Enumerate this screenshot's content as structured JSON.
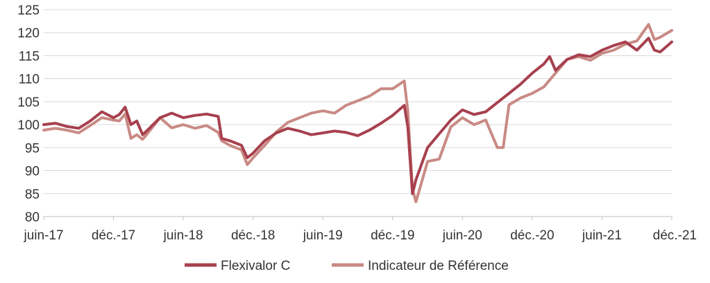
{
  "chart_data": {
    "type": "line",
    "title": "",
    "xlabel": "",
    "ylabel": "",
    "ylim": [
      80,
      125
    ],
    "yticks": [
      80,
      85,
      90,
      95,
      100,
      105,
      110,
      115,
      120,
      125
    ],
    "xticks": [
      "juin-17",
      "déc.-17",
      "juin-18",
      "déc.-18",
      "juin-19",
      "déc.-19",
      "juin-20",
      "déc.-20",
      "juin-21",
      "déc.-21"
    ],
    "xrange": [
      0,
      54
    ],
    "grid": true,
    "legend_position": "bottom",
    "series": [
      {
        "name": "Flexivalor C",
        "color": "#a7404e",
        "points": [
          [
            0,
            100
          ],
          [
            1,
            100.3
          ],
          [
            2,
            99.6
          ],
          [
            3,
            99.2
          ],
          [
            4,
            100.8
          ],
          [
            5,
            102.8
          ],
          [
            6,
            101.5
          ],
          [
            6.5,
            102.2
          ],
          [
            7,
            103.8
          ],
          [
            7.5,
            100
          ],
          [
            8,
            100.8
          ],
          [
            8.5,
            97.8
          ],
          [
            9,
            99
          ],
          [
            10,
            101.5
          ],
          [
            11,
            102.5
          ],
          [
            12,
            101.5
          ],
          [
            13,
            102
          ],
          [
            14,
            102.3
          ],
          [
            15,
            101.8
          ],
          [
            15.3,
            97
          ],
          [
            16,
            96.5
          ],
          [
            17,
            95.5
          ],
          [
            17.5,
            92.8
          ],
          [
            18,
            93.8
          ],
          [
            19,
            96.5
          ],
          [
            20,
            98.2
          ],
          [
            21,
            99.2
          ],
          [
            22,
            98.6
          ],
          [
            23,
            97.8
          ],
          [
            24,
            98.2
          ],
          [
            25,
            98.6
          ],
          [
            26,
            98.3
          ],
          [
            27,
            97.6
          ],
          [
            28,
            98.8
          ],
          [
            29,
            100.3
          ],
          [
            30,
            102
          ],
          [
            31,
            104.2
          ],
          [
            31.3,
            99.5
          ],
          [
            31.7,
            85
          ],
          [
            32,
            88
          ],
          [
            33,
            95
          ],
          [
            34,
            98
          ],
          [
            35,
            101
          ],
          [
            36,
            103.2
          ],
          [
            37,
            102.2
          ],
          [
            38,
            102.8
          ],
          [
            39,
            104.8
          ],
          [
            40,
            106.8
          ],
          [
            41,
            108.8
          ],
          [
            42,
            111.2
          ],
          [
            43,
            113.2
          ],
          [
            43.5,
            114.8
          ],
          [
            44,
            111.8
          ],
          [
            45,
            114.2
          ],
          [
            46,
            115.2
          ],
          [
            47,
            114.8
          ],
          [
            48,
            116.2
          ],
          [
            49,
            117.2
          ],
          [
            50,
            118
          ],
          [
            51,
            116.2
          ],
          [
            52,
            118.8
          ],
          [
            52.5,
            116.2
          ],
          [
            53,
            115.8
          ],
          [
            54,
            118
          ]
        ]
      },
      {
        "name": "Indicateur de Référence",
        "color": "#c98a84",
        "points": [
          [
            0,
            98.8
          ],
          [
            1,
            99.2
          ],
          [
            2,
            98.8
          ],
          [
            3,
            98.2
          ],
          [
            4,
            99.8
          ],
          [
            5,
            101.5
          ],
          [
            6,
            101
          ],
          [
            6.5,
            100.8
          ],
          [
            7,
            102.3
          ],
          [
            7.5,
            97
          ],
          [
            8,
            97.8
          ],
          [
            8.5,
            96.8
          ],
          [
            9,
            98.3
          ],
          [
            10,
            101.5
          ],
          [
            11,
            99.3
          ],
          [
            12,
            100
          ],
          [
            13,
            99.2
          ],
          [
            14,
            99.8
          ],
          [
            15,
            98.3
          ],
          [
            15.3,
            96.5
          ],
          [
            16,
            95.5
          ],
          [
            17,
            94.5
          ],
          [
            17.5,
            91.3
          ],
          [
            18,
            92.8
          ],
          [
            19,
            95.5
          ],
          [
            20,
            98.4
          ],
          [
            21,
            100.5
          ],
          [
            22,
            101.5
          ],
          [
            23,
            102.5
          ],
          [
            24,
            103
          ],
          [
            25,
            102.5
          ],
          [
            26,
            104.2
          ],
          [
            27,
            105.2
          ],
          [
            28,
            106.2
          ],
          [
            29,
            107.8
          ],
          [
            30,
            107.8
          ],
          [
            31,
            109.5
          ],
          [
            31.3,
            103
          ],
          [
            31.7,
            86
          ],
          [
            32,
            83.2
          ],
          [
            33,
            92
          ],
          [
            34,
            92.5
          ],
          [
            35,
            99.5
          ],
          [
            36,
            101.5
          ],
          [
            37,
            100
          ],
          [
            38,
            101
          ],
          [
            39,
            95
          ],
          [
            39.5,
            95
          ],
          [
            40,
            104.3
          ],
          [
            41,
            105.8
          ],
          [
            42,
            106.8
          ],
          [
            43,
            108.2
          ],
          [
            44,
            111.2
          ],
          [
            45,
            114.2
          ],
          [
            46,
            114.8
          ],
          [
            47,
            114
          ],
          [
            48,
            115.5
          ],
          [
            49,
            116.2
          ],
          [
            50,
            117.5
          ],
          [
            51,
            118.2
          ],
          [
            52,
            121.8
          ],
          [
            52.5,
            118.5
          ],
          [
            53,
            119
          ],
          [
            54,
            120.5
          ]
        ]
      }
    ]
  }
}
